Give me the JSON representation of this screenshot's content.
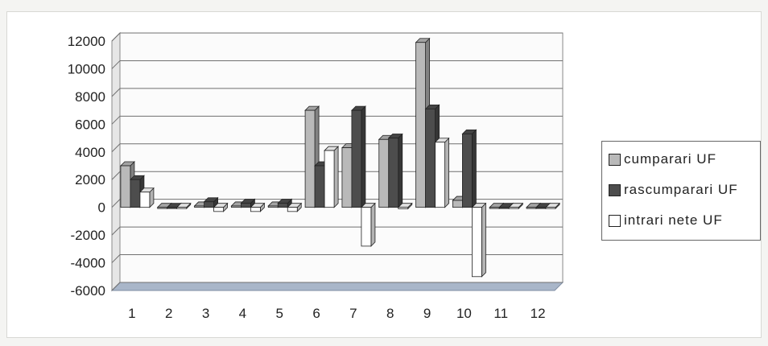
{
  "chart_data": {
    "type": "bar",
    "title": "",
    "xlabel": "",
    "ylabel": "",
    "categories": [
      "1",
      "2",
      "3",
      "4",
      "5",
      "6",
      "7",
      "8",
      "9",
      "10",
      "11",
      "12"
    ],
    "ylim": [
      -6000,
      12000
    ],
    "yticks": [
      "12000",
      "10000",
      "8000",
      "6000",
      "4000",
      "2000",
      "0",
      "-2000",
      "-4000",
      "-6000"
    ],
    "grid": true,
    "legend_position": "right",
    "series": [
      {
        "name": "cumparari UF",
        "color": "#b9b9b9",
        "values": [
          3000,
          0,
          100,
          100,
          100,
          7000,
          4300,
          4900,
          11900,
          500,
          0,
          0
        ]
      },
      {
        "name": "rascumparari UF",
        "color": "#4d4d4d",
        "values": [
          2000,
          0,
          400,
          300,
          300,
          3000,
          7000,
          5000,
          7100,
          5300,
          0,
          0
        ]
      },
      {
        "name": "intrari nete UF",
        "color": "#ffffff",
        "values": [
          1100,
          0,
          -300,
          -300,
          -300,
          4100,
          -2800,
          -100,
          4700,
          -5000,
          0,
          0
        ]
      }
    ]
  }
}
